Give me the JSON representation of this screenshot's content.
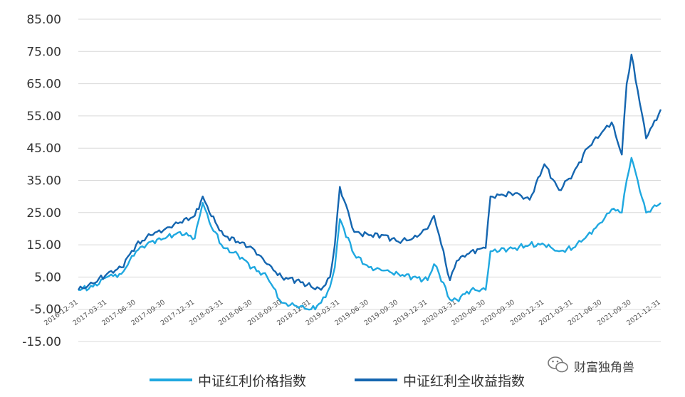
{
  "chart_data": {
    "type": "line",
    "title": "",
    "xlabel": "",
    "ylabel": "",
    "ylim": [
      -15,
      85
    ],
    "yticks": [
      "85.00",
      "75.00",
      "65.00",
      "55.00",
      "45.00",
      "35.00",
      "25.00",
      "15.00",
      "5.00",
      "-5.00",
      "-15.00"
    ],
    "x_ticks": [
      "2016-12-31",
      "2017-03-31",
      "2017-06-30",
      "2017-09-30",
      "2017-12-31",
      "2018-03-31",
      "2018-06-30",
      "2018-09-30",
      "2018-12-31",
      "2019-03-31",
      "2019-06-30",
      "2019-09-30",
      "2019-12-31",
      "2020-03-31",
      "2020-06-30",
      "2020-09-30",
      "2020-12-31",
      "2021-03-31",
      "2021-06-30",
      "2021-09-30",
      "2021-12-31"
    ],
    "grid": "horizontal",
    "legend_position": "bottom",
    "series": [
      {
        "name": "中证红利价格指数",
        "color": "#1fa8e0",
        "x": [
          "2016-12-31",
          "2017-02-15",
          "2017-03-31",
          "2017-05-15",
          "2017-06-30",
          "2017-08-15",
          "2017-09-30",
          "2017-11-15",
          "2017-12-31",
          "2018-01-25",
          "2018-02-15",
          "2018-03-31",
          "2018-05-15",
          "2018-06-30",
          "2018-08-15",
          "2018-09-30",
          "2018-11-15",
          "2018-12-31",
          "2019-01-31",
          "2019-02-28",
          "2019-03-15",
          "2019-03-31",
          "2019-05-15",
          "2019-06-30",
          "2019-08-15",
          "2019-09-30",
          "2019-11-15",
          "2019-12-31",
          "2020-01-20",
          "2020-02-05",
          "2020-03-10",
          "2020-03-31",
          "2020-05-15",
          "2020-06-30",
          "2020-07-15",
          "2020-09-30",
          "2020-11-15",
          "2020-12-31",
          "2021-02-15",
          "2021-03-31",
          "2021-05-15",
          "2021-06-30",
          "2021-07-30",
          "2021-08-31",
          "2021-09-15",
          "2021-09-30",
          "2021-11-15",
          "2021-12-31"
        ],
        "values": [
          1,
          2,
          5,
          6,
          13,
          16,
          17,
          19,
          17,
          28,
          22,
          14,
          12,
          8,
          5,
          -3,
          -4,
          -5,
          -3,
          2,
          8,
          23,
          12,
          8,
          7,
          6,
          5,
          4,
          9,
          6,
          -2,
          -2,
          1,
          1,
          13,
          14,
          15,
          15,
          13,
          14,
          18,
          22,
          26,
          25,
          35,
          42,
          25,
          28
        ]
      },
      {
        "name": "中证红利全收益指数",
        "color": "#1566b0",
        "x": [
          "2016-12-31",
          "2017-02-15",
          "2017-03-31",
          "2017-05-15",
          "2017-06-30",
          "2017-08-15",
          "2017-09-30",
          "2017-11-15",
          "2017-12-31",
          "2018-01-25",
          "2018-02-15",
          "2018-03-31",
          "2018-05-15",
          "2018-06-30",
          "2018-08-15",
          "2018-09-30",
          "2018-11-15",
          "2018-12-31",
          "2019-01-31",
          "2019-02-28",
          "2019-03-15",
          "2019-03-31",
          "2019-05-15",
          "2019-06-30",
          "2019-08-15",
          "2019-09-30",
          "2019-11-15",
          "2019-12-31",
          "2020-01-20",
          "2020-02-05",
          "2020-03-10",
          "2020-03-31",
          "2020-05-15",
          "2020-06-30",
          "2020-07-15",
          "2020-09-30",
          "2020-11-15",
          "2020-12-31",
          "2021-02-15",
          "2021-03-31",
          "2021-05-15",
          "2021-06-30",
          "2021-07-30",
          "2021-08-31",
          "2021-09-15",
          "2021-09-30",
          "2021-11-15",
          "2021-12-31"
        ],
        "values": [
          1,
          3,
          6,
          8,
          15,
          18,
          20,
          22,
          24,
          30,
          25,
          18,
          16,
          14,
          9,
          5,
          4,
          2,
          1,
          5,
          15,
          33,
          19,
          18,
          18,
          16,
          17,
          20,
          24,
          18,
          4,
          10,
          13,
          14,
          30,
          31,
          29,
          40,
          32,
          37,
          45,
          50,
          53,
          43,
          65,
          74,
          48,
          57
        ]
      }
    ]
  },
  "legend": {
    "items": [
      "中证红利价格指数",
      "中证红利全收益指数"
    ]
  },
  "watermark": {
    "text": "财富独角兽",
    "icon": "wechat-icon"
  }
}
